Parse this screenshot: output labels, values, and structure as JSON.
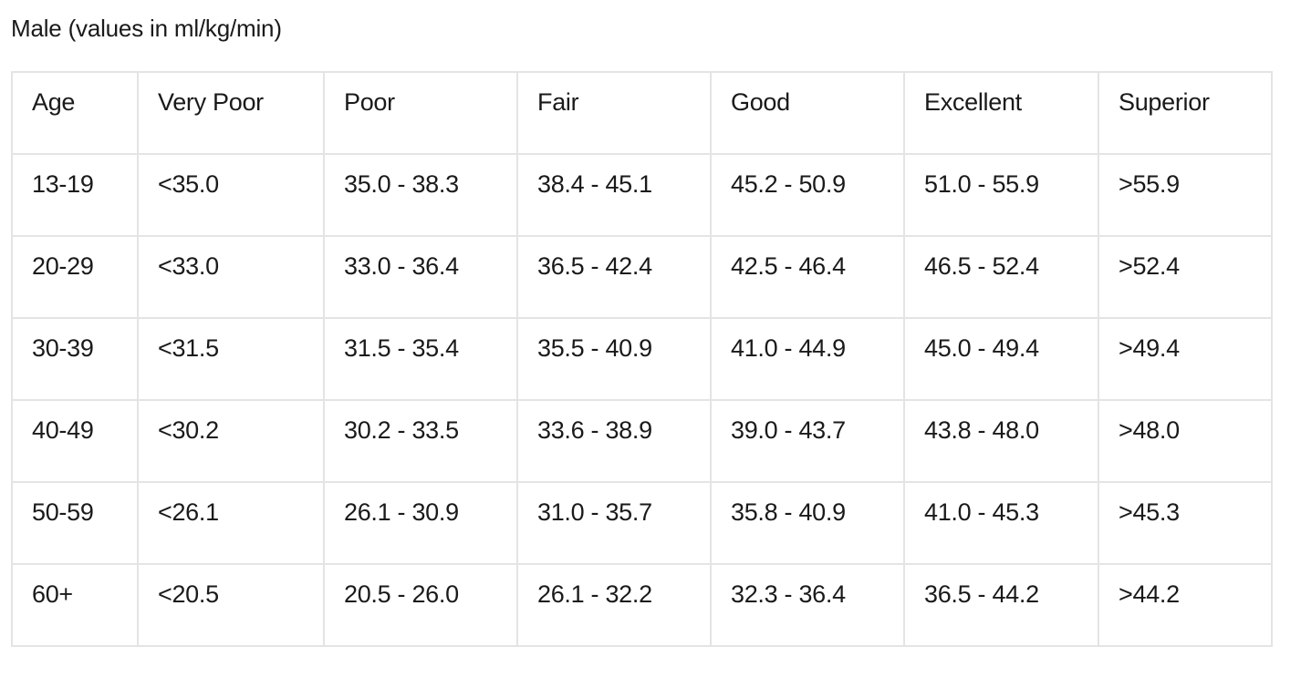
{
  "caption": "Male (values in ml/kg/min)",
  "table": {
    "headers": [
      "Age",
      "Very Poor",
      "Poor",
      "Fair",
      "Good",
      "Excellent",
      "Superior"
    ],
    "rows": [
      [
        "13-19",
        "<35.0",
        "35.0 - 38.3",
        "38.4 - 45.1",
        "45.2 - 50.9",
        "51.0 - 55.9",
        ">55.9"
      ],
      [
        "20-29",
        "<33.0",
        "33.0 - 36.4",
        "36.5 - 42.4",
        "42.5 - 46.4",
        "46.5 - 52.4",
        ">52.4"
      ],
      [
        "30-39",
        "<31.5",
        "31.5 - 35.4",
        "35.5 - 40.9",
        "41.0 - 44.9",
        "45.0 - 49.4",
        ">49.4"
      ],
      [
        "40-49",
        "<30.2",
        "30.2 - 33.5",
        "33.6 - 38.9",
        "39.0 - 43.7",
        "43.8 - 48.0",
        ">48.0"
      ],
      [
        "50-59",
        "<26.1",
        "26.1 - 30.9",
        "31.0 - 35.7",
        "35.8 - 40.9",
        "41.0 - 45.3",
        ">45.3"
      ],
      [
        "60+",
        "<20.5",
        "20.5 - 26.0",
        "26.1 - 32.2",
        "32.3 - 36.4",
        "36.5 - 44.2",
        ">44.2"
      ]
    ]
  }
}
